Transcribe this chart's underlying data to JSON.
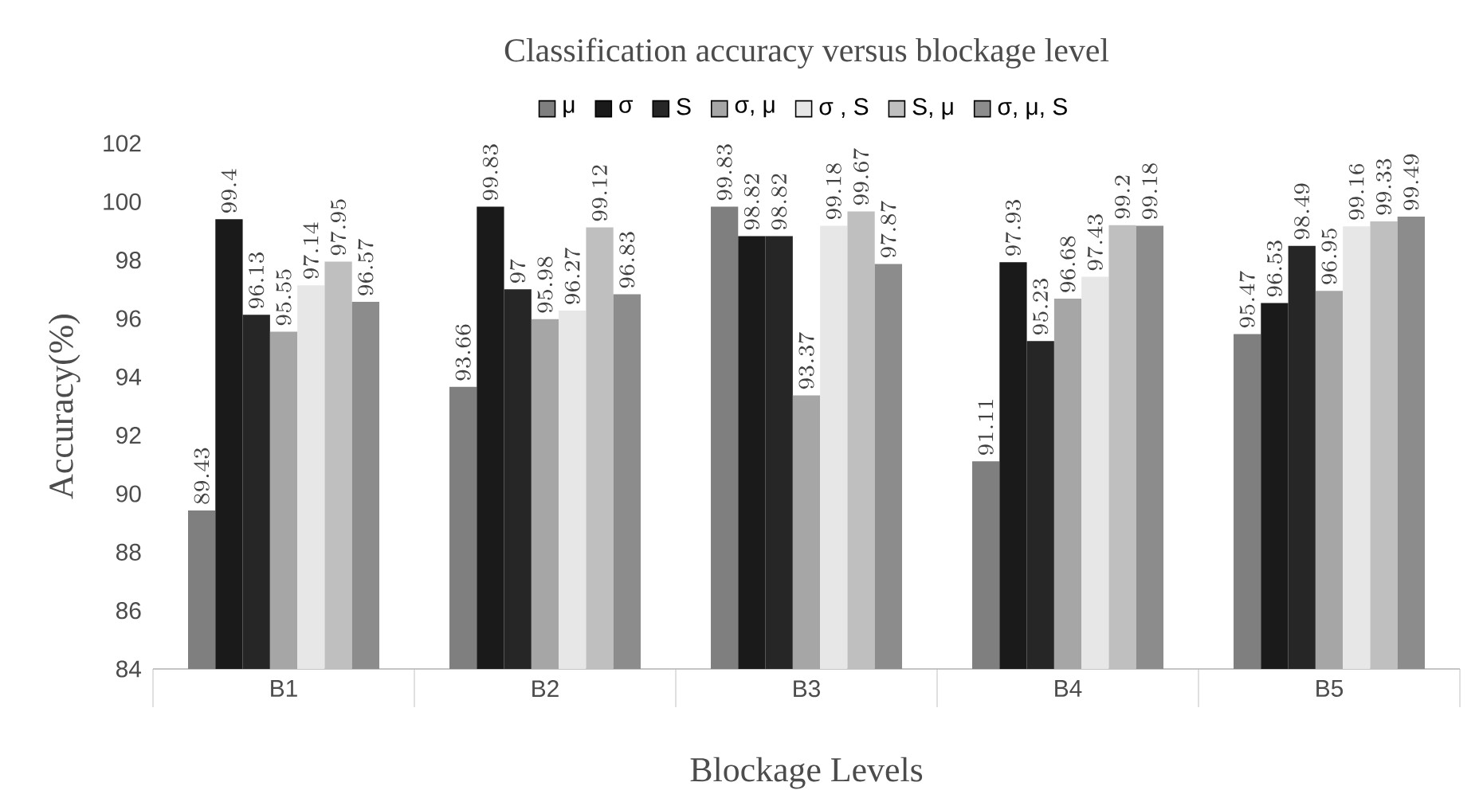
{
  "chart_data": {
    "type": "bar",
    "title": "Classification accuracy versus blockage level",
    "xlabel": "Blockage Levels",
    "ylabel": "Accuracy(%)",
    "categories": [
      "B1",
      "B2",
      "B3",
      "B4",
      "B5"
    ],
    "series": [
      {
        "name": "μ",
        "color": "#7f7f7f",
        "values": [
          89.43,
          93.66,
          99.83,
          91.11,
          95.47
        ]
      },
      {
        "name": "σ",
        "color": "#1a1a1a",
        "values": [
          99.4,
          99.83,
          98.82,
          97.93,
          96.53
        ]
      },
      {
        "name": "S",
        "color": "#262626",
        "values": [
          96.13,
          97,
          98.82,
          95.23,
          98.49
        ]
      },
      {
        "name": "σ, μ",
        "color": "#a6a6a6",
        "values": [
          95.55,
          95.98,
          93.37,
          96.68,
          96.95
        ]
      },
      {
        "name": "σ , S",
        "color": "#e7e7e7",
        "values": [
          97.14,
          96.27,
          99.18,
          97.43,
          99.16
        ]
      },
      {
        "name": "S, μ",
        "color": "#bfbfbf",
        "values": [
          97.95,
          99.12,
          99.67,
          99.2,
          99.33
        ]
      },
      {
        "name": "σ, μ, S",
        "color": "#8c8c8c",
        "values": [
          96.57,
          96.83,
          97.87,
          99.18,
          99.49
        ]
      }
    ],
    "ylim": [
      84,
      102
    ],
    "yticks": [
      84,
      86,
      88,
      90,
      92,
      94,
      96,
      98,
      100,
      102
    ],
    "data_labels": true,
    "legend": "top",
    "grid": false
  }
}
